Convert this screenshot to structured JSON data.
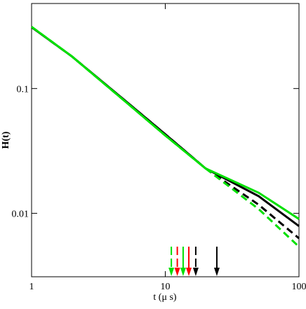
{
  "chart_data": {
    "type": "line",
    "xlabel": "t (μ s)",
    "ylabel": "H(t)",
    "xscale": "log",
    "yscale": "log",
    "xlim": [
      1,
      100
    ],
    "ylim": [
      0.0031,
      0.48
    ],
    "xticks": [
      1,
      10,
      100
    ],
    "yticks": [
      0.1,
      0.01
    ],
    "x": [
      1,
      2,
      5,
      10,
      20,
      50,
      100
    ],
    "series": [
      {
        "color": "#000000",
        "dashed": false,
        "values": [
          0.31,
          0.181,
          0.08,
          0.043,
          0.0229,
          0.0137,
          0.0079
        ]
      },
      {
        "color": "#000000",
        "dashed": true,
        "values": [
          0.31,
          0.181,
          0.08,
          0.043,
          0.0229,
          0.0117,
          0.0063
        ]
      },
      {
        "color": "#00e000",
        "dashed": true,
        "values": [
          0.312,
          0.181,
          0.079,
          0.042,
          0.0229,
          0.0108,
          0.0054
        ]
      },
      {
        "color": "#00e000",
        "dashed": false,
        "values": [
          0.312,
          0.181,
          0.079,
          0.042,
          0.0229,
          0.0146,
          0.009
        ]
      }
    ],
    "markers": [
      {
        "x": 11.1,
        "color": "#00e000",
        "dashed": true
      },
      {
        "x": 12.3,
        "color": "#ff0000",
        "dashed": true
      },
      {
        "x": 13.6,
        "color": "#00e000",
        "dashed": false
      },
      {
        "x": 15.0,
        "color": "#ff0000",
        "dashed": false
      },
      {
        "x": 16.9,
        "color": "#000000",
        "dashed": true
      },
      {
        "x": 24.3,
        "color": "#000000",
        "dashed": false
      }
    ]
  }
}
